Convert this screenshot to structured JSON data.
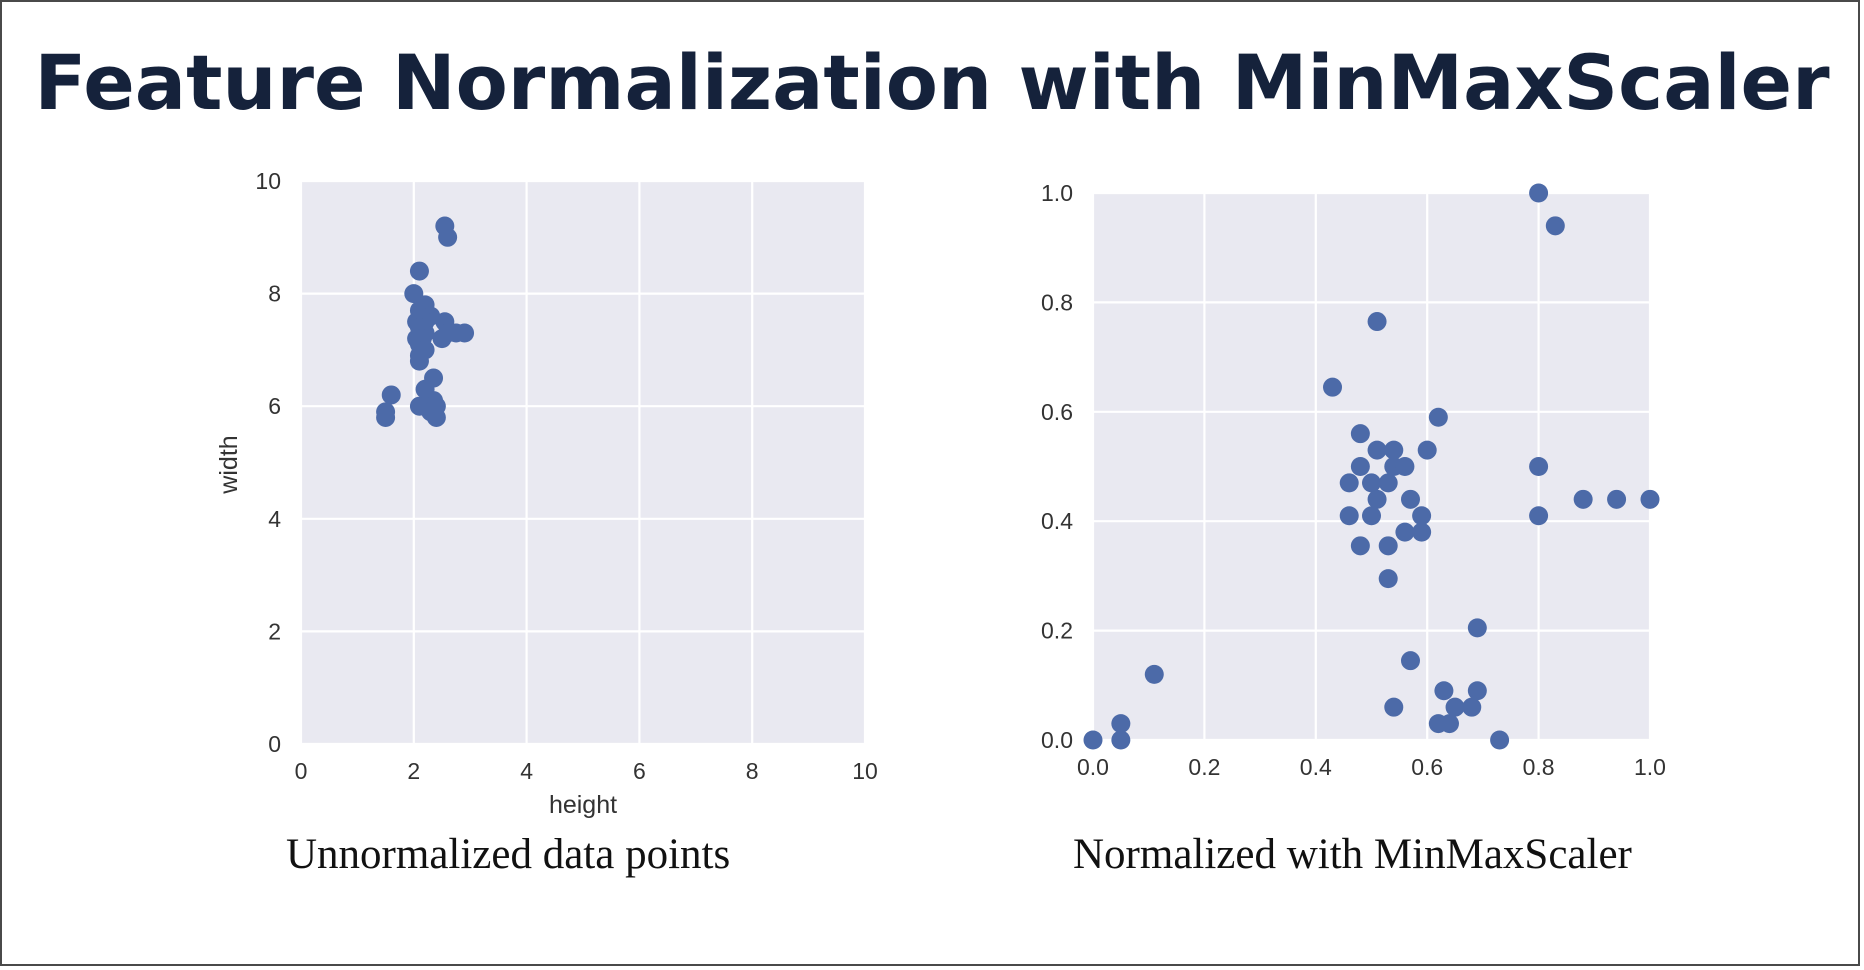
{
  "slide": {
    "title": "Feature Normalization with MinMaxScaler",
    "caption_left": "Unnormalized data points",
    "caption_right": "Normalized with MinMaxScaler"
  },
  "colors": {
    "title": "#15223b",
    "plot_background": "#e9e9f1",
    "grid": "#ffffff",
    "point": "#4c6aa8"
  },
  "chart_data": [
    {
      "type": "scatter",
      "title": "",
      "xlabel": "height",
      "ylabel": "width",
      "xlim": [
        0,
        10
      ],
      "ylim": [
        0,
        10
      ],
      "xticks": [
        "0",
        "2",
        "4",
        "6",
        "8",
        "10"
      ],
      "yticks": [
        "0",
        "2",
        "4",
        "6",
        "8",
        "10"
      ],
      "grid": true,
      "points": [
        [
          2.55,
          9.2
        ],
        [
          2.6,
          9.0
        ],
        [
          2.1,
          8.4
        ],
        [
          2.0,
          8.0
        ],
        [
          2.2,
          7.8
        ],
        [
          2.1,
          7.7
        ],
        [
          2.3,
          7.6
        ],
        [
          2.05,
          7.5
        ],
        [
          2.2,
          7.5
        ],
        [
          2.55,
          7.5
        ],
        [
          2.1,
          7.4
        ],
        [
          2.2,
          7.3
        ],
        [
          2.6,
          7.3
        ],
        [
          2.75,
          7.3
        ],
        [
          2.9,
          7.3
        ],
        [
          2.05,
          7.2
        ],
        [
          2.15,
          7.2
        ],
        [
          2.5,
          7.2
        ],
        [
          2.1,
          7.1
        ],
        [
          2.2,
          7.0
        ],
        [
          2.1,
          6.9
        ],
        [
          2.1,
          6.8
        ],
        [
          2.35,
          6.5
        ],
        [
          2.2,
          6.3
        ],
        [
          1.6,
          6.2
        ],
        [
          2.35,
          6.1
        ],
        [
          2.1,
          6.0
        ],
        [
          2.2,
          6.0
        ],
        [
          2.4,
          6.0
        ],
        [
          1.5,
          5.9
        ],
        [
          2.3,
          5.9
        ],
        [
          1.5,
          5.8
        ],
        [
          2.4,
          5.8
        ]
      ]
    },
    {
      "type": "scatter",
      "title": "",
      "xlabel": "",
      "ylabel": "",
      "xlim": [
        0,
        1
      ],
      "ylim": [
        0,
        1
      ],
      "xticks": [
        "0.0",
        "0.2",
        "0.4",
        "0.6",
        "0.8",
        "1.0"
      ],
      "yticks": [
        "0.0",
        "0.2",
        "0.4",
        "0.6",
        "0.8",
        "1.0"
      ],
      "grid": true,
      "points": [
        [
          0.8,
          1.0
        ],
        [
          0.83,
          0.94
        ],
        [
          0.51,
          0.765
        ],
        [
          0.43,
          0.645
        ],
        [
          0.62,
          0.59
        ],
        [
          0.48,
          0.56
        ],
        [
          0.51,
          0.53
        ],
        [
          0.54,
          0.53
        ],
        [
          0.6,
          0.53
        ],
        [
          0.48,
          0.5
        ],
        [
          0.54,
          0.5
        ],
        [
          0.56,
          0.5
        ],
        [
          0.8,
          0.5
        ],
        [
          0.46,
          0.47
        ],
        [
          0.5,
          0.47
        ],
        [
          0.53,
          0.47
        ],
        [
          0.51,
          0.44
        ],
        [
          0.57,
          0.44
        ],
        [
          0.88,
          0.44
        ],
        [
          0.94,
          0.44
        ],
        [
          1.0,
          0.44
        ],
        [
          0.46,
          0.41
        ],
        [
          0.5,
          0.41
        ],
        [
          0.59,
          0.41
        ],
        [
          0.8,
          0.41
        ],
        [
          0.56,
          0.38
        ],
        [
          0.59,
          0.38
        ],
        [
          0.48,
          0.355
        ],
        [
          0.53,
          0.355
        ],
        [
          0.53,
          0.295
        ],
        [
          0.69,
          0.205
        ],
        [
          0.57,
          0.145
        ],
        [
          0.11,
          0.12
        ],
        [
          0.63,
          0.09
        ],
        [
          0.69,
          0.09
        ],
        [
          0.54,
          0.06
        ],
        [
          0.65,
          0.06
        ],
        [
          0.68,
          0.06
        ],
        [
          0.05,
          0.03
        ],
        [
          0.62,
          0.03
        ],
        [
          0.64,
          0.03
        ],
        [
          0.0,
          0.0
        ],
        [
          0.05,
          0.0
        ],
        [
          0.73,
          0.0
        ]
      ]
    }
  ]
}
